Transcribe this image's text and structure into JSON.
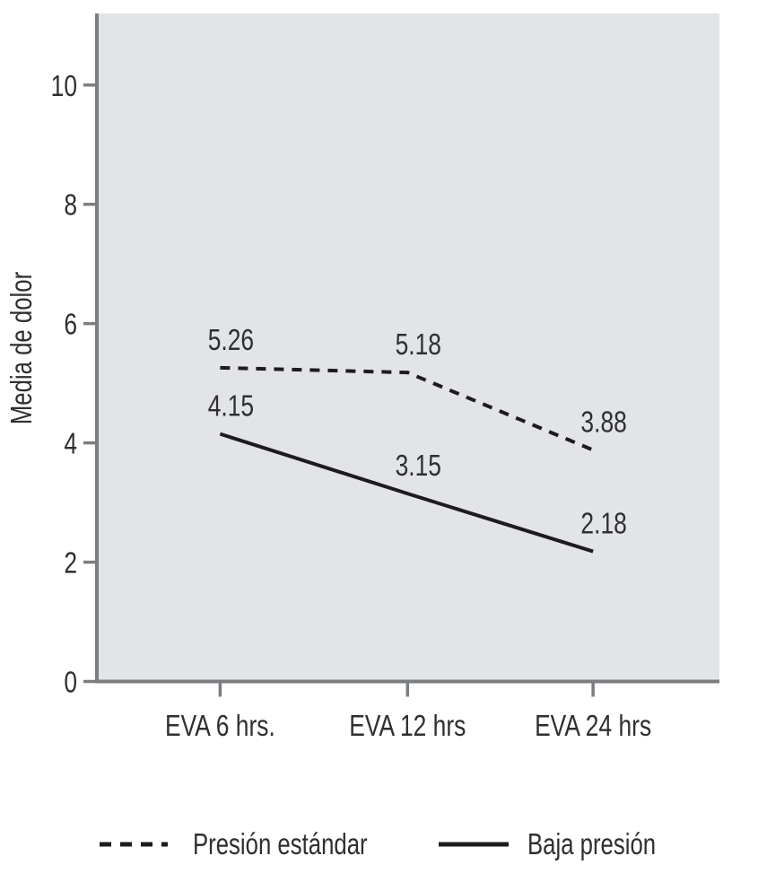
{
  "chart_data": {
    "type": "line",
    "title": "",
    "ylabel": "Media de dolor",
    "xlabel": "",
    "categories": [
      "EVA 6 hrs.",
      "EVA 12 hrs",
      "EVA 24 hrs"
    ],
    "series": [
      {
        "name": "Presión estándar",
        "line_style": "dashed",
        "values": [
          5.26,
          5.18,
          3.88
        ],
        "point_labels": [
          "5.26",
          "5.18",
          "3.88"
        ]
      },
      {
        "name": "Baja presión",
        "line_style": "solid",
        "values": [
          4.15,
          3.15,
          2.18
        ],
        "point_labels": [
          "4.15",
          "3.15",
          "2.18"
        ]
      }
    ],
    "ylim": [
      0,
      11.2
    ],
    "yticks": [
      0,
      2,
      4,
      6,
      8,
      10
    ],
    "grid": false,
    "legend_position": "bottom",
    "colors": {
      "plot_background": "#e3e4e6",
      "axis": "#7b7e81",
      "series_line": "#1c1c1e",
      "text": "#2e2f30"
    }
  }
}
